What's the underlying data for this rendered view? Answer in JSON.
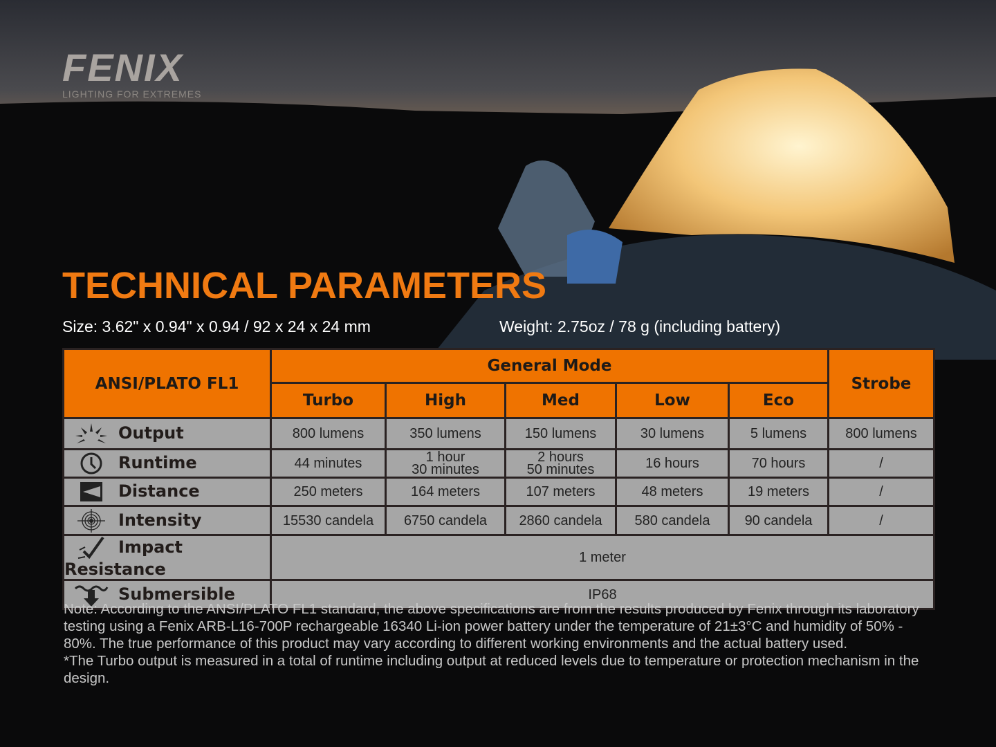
{
  "brand": {
    "logo": "FENIX",
    "tagline": "LIGHTING FOR EXTREMES"
  },
  "title": "TECHNICAL PARAMETERS",
  "size": "Size: 3.62\" x 0.94\" x 0.94 / 92 x 24 x 24 mm",
  "weight": "Weight: 2.75oz / 78 g (including battery)",
  "colors": {
    "accent": "#ef7300",
    "cell": "#a6a6a6"
  },
  "table": {
    "standard": "ANSI/PLATO FL1",
    "general_mode": "General Mode",
    "strobe": "Strobe",
    "modes": [
      "Turbo",
      "High",
      "Med",
      "Low",
      "Eco"
    ],
    "rows": [
      {
        "label": "Output",
        "icon": "output-icon",
        "values": [
          "800 lumens",
          "350 lumens",
          "150 lumens",
          "30 lumens",
          "5 lumens",
          "800 lumens"
        ]
      },
      {
        "label": "Runtime",
        "icon": "clock-icon",
        "values": [
          "44 minutes",
          "1 hour\n30 minutes",
          "2 hours\n50 minutes",
          "16 hours",
          "70 hours",
          "/"
        ]
      },
      {
        "label": "Distance",
        "icon": "distance-icon",
        "values": [
          "250 meters",
          "164 meters",
          "107 meters",
          "48 meters",
          "19 meters",
          "/"
        ]
      },
      {
        "label": "Intensity",
        "icon": "target-icon",
        "values": [
          "15530 candela",
          "6750 candela",
          "2860 candela",
          "580 candela",
          "90 candela",
          "/"
        ]
      },
      {
        "label": "Impact Resistance",
        "icon": "impact-icon",
        "value": "1 meter"
      },
      {
        "label": "Submersible",
        "icon": "submersible-icon",
        "value": "IP68"
      }
    ]
  },
  "note": "Note: According to the ANSI/PLATO FL1 standard, the above specifications are from the results produced by Fenix through its laboratory testing using a Fenix ARB-L16-700P rechargeable 16340 Li-ion power battery under the temperature of 21±3°C and humidity of 50% - 80%. The true performance of this product may vary according to different working environments and the actual battery used.",
  "note2": "*The Turbo output is measured in a total of runtime including output at reduced levels due to temperature or protection mechanism in the design."
}
